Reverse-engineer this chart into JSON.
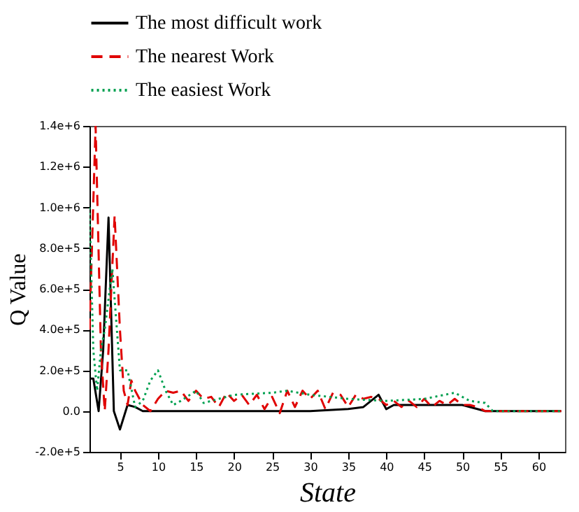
{
  "chart_data": {
    "type": "line",
    "xlabel": "State",
    "ylabel": "Q Value",
    "xlim": [
      1,
      63.5
    ],
    "xticks": [
      5,
      10,
      15,
      20,
      25,
      30,
      35,
      40,
      45,
      50,
      55,
      60
    ],
    "ylim": [
      -200000,
      1400000
    ],
    "yticks": [
      {
        "value": -200000,
        "label": "-2.0e+5"
      },
      {
        "value": 0,
        "label": "0.0"
      },
      {
        "value": 200000,
        "label": "2.0e+5"
      },
      {
        "value": 400000,
        "label": "4.0e+5"
      },
      {
        "value": 600000,
        "label": "6.0e+5"
      },
      {
        "value": 800000,
        "label": "8.0e+5"
      },
      {
        "value": 1000000,
        "label": "1.0e+6"
      },
      {
        "value": 1200000,
        "label": "1.2e+6"
      },
      {
        "value": 1400000,
        "label": "1.4e+6"
      }
    ],
    "grid": false,
    "legend": "top",
    "series": [
      {
        "name": "The most difficult work",
        "color": "#000000",
        "line_style": "solid",
        "x": [
          1,
          1.5,
          2.2,
          2.8,
          3.5,
          4.2,
          5,
          6,
          7,
          8,
          30,
          35,
          37,
          39,
          40,
          41,
          45,
          50,
          53,
          63
        ],
        "values": [
          160000,
          160000,
          0,
          300000,
          950000,
          0,
          -90000,
          30000,
          20000,
          0,
          0,
          10000,
          20000,
          80000,
          10000,
          30000,
          30000,
          30000,
          0,
          0
        ]
      },
      {
        "name": "The nearest Work",
        "color": "#e00000",
        "line_style": "dashed",
        "x": [
          1,
          1.8,
          2.5,
          3,
          3.5,
          4.3,
          5,
          5.5,
          6,
          6.5,
          7,
          8,
          9,
          10,
          11,
          12,
          13,
          14,
          15,
          16,
          17,
          18,
          19,
          20,
          21,
          22,
          23,
          24,
          25,
          26,
          27,
          28,
          29,
          30,
          31,
          32,
          33,
          34,
          35,
          36,
          37,
          38,
          39,
          40,
          41,
          42,
          43,
          44,
          45,
          46,
          47,
          48,
          49,
          50,
          51,
          52,
          53,
          63
        ],
        "values": [
          400000,
          1400000,
          300000,
          0,
          300000,
          960000,
          400000,
          100000,
          30000,
          150000,
          100000,
          30000,
          0,
          60000,
          100000,
          90000,
          100000,
          50000,
          100000,
          60000,
          70000,
          20000,
          90000,
          50000,
          80000,
          30000,
          80000,
          10000,
          70000,
          -10000,
          100000,
          20000,
          100000,
          60000,
          100000,
          10000,
          90000,
          80000,
          20000,
          80000,
          60000,
          70000,
          60000,
          30000,
          50000,
          20000,
          50000,
          20000,
          60000,
          20000,
          50000,
          30000,
          60000,
          30000,
          30000,
          20000,
          0,
          0
        ]
      },
      {
        "name": "The easiest Work",
        "color": "#00a050",
        "line_style": "dotted",
        "x": [
          1,
          1.5,
          2,
          2.5,
          3,
          4,
          5,
          6,
          7,
          8,
          9,
          10,
          11,
          12,
          13,
          15,
          16,
          20,
          25,
          27,
          30,
          35,
          40,
          45,
          49,
          51,
          53,
          54,
          63
        ],
        "values": [
          1000000,
          300000,
          100000,
          300000,
          400000,
          700000,
          200000,
          200000,
          20000,
          50000,
          150000,
          200000,
          100000,
          30000,
          50000,
          100000,
          40000,
          80000,
          90000,
          100000,
          80000,
          60000,
          50000,
          60000,
          90000,
          50000,
          40000,
          0,
          0
        ]
      }
    ]
  }
}
